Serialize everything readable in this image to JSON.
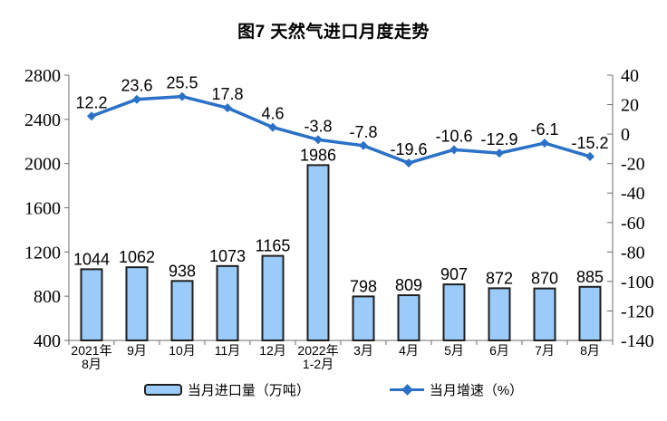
{
  "title": "图7 天然气进口月度走势",
  "chart_data": {
    "type": "bar+line combo",
    "title": "图7 天然气进口月度走势",
    "categories": [
      [
        "2021年",
        "8月"
      ],
      [
        "9月"
      ],
      [
        "10月"
      ],
      [
        "11月"
      ],
      [
        "12月"
      ],
      [
        "2022年",
        "1-2月"
      ],
      [
        "3月"
      ],
      [
        "4月"
      ],
      [
        "5月"
      ],
      [
        "6月"
      ],
      [
        "7月"
      ],
      [
        "8月"
      ]
    ],
    "series": [
      {
        "name": "当月进口量（万吨）",
        "type": "bar",
        "axis": "left",
        "values": [
          1044,
          1062,
          938,
          1073,
          1165,
          1986,
          798,
          809,
          907,
          872,
          870,
          885
        ],
        "fill_color": "#9BCBF8",
        "border_color": "#1f1f1f"
      },
      {
        "name": "当月增速（%）",
        "type": "line",
        "axis": "right",
        "values": [
          12.2,
          23.6,
          25.5,
          17.8,
          4.6,
          -3.8,
          -7.8,
          -19.6,
          -10.6,
          -12.9,
          -6.1,
          -15.2
        ],
        "color": "#2A71C7",
        "marker": "diamond"
      }
    ],
    "left_axis": {
      "min": 400,
      "max": 2800,
      "step": 400,
      "ticks": [
        2800,
        2400,
        2000,
        1600,
        1200,
        800,
        400
      ]
    },
    "right_axis": {
      "min": -140,
      "max": 40,
      "step": 20,
      "ticks": [
        40,
        20,
        0,
        -20,
        -40,
        -60,
        -80,
        -100,
        -120,
        -140
      ]
    },
    "grid": false,
    "data_labels": true,
    "legend_position": "bottom"
  },
  "legend": {
    "bar_label": "当月进口量（万吨）",
    "line_label": "当月增速（%）"
  }
}
